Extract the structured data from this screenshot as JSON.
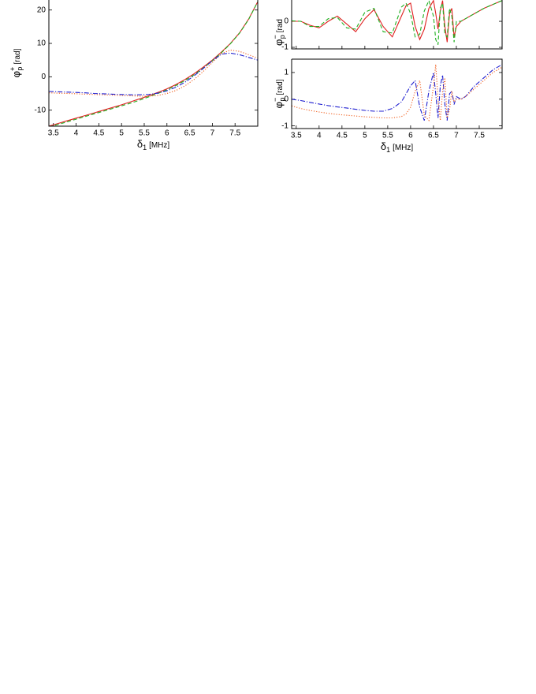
{
  "chart_data": [
    {
      "type": "line",
      "ylabel": {
        "symbol": "φ",
        "sub": "p",
        "sup": "+",
        "unit": "[rad]"
      },
      "xlabel": {
        "symbol": "δ",
        "sub": "1",
        "unit": "[MHz]"
      },
      "xlim": [
        3.4,
        8.0
      ],
      "ylim": [
        -14.8,
        23
      ],
      "xticks": [
        3.5,
        4,
        4.5,
        5,
        5.5,
        6,
        6.5,
        7,
        7.5
      ],
      "yticks": [
        -10,
        0,
        10,
        20
      ],
      "x": [
        3.4,
        3.6,
        3.8,
        4.0,
        4.2,
        4.4,
        4.6,
        4.8,
        5.0,
        5.2,
        5.4,
        5.6,
        5.8,
        6.0,
        6.2,
        6.4,
        6.6,
        6.8,
        7.0,
        7.2,
        7.4,
        7.6,
        7.8,
        8.0
      ],
      "series": [
        {
          "color": "#e02020",
          "dash": "solid",
          "values": [
            -14.8,
            -14,
            -13.2,
            -12.4,
            -11.6,
            -10.8,
            -10,
            -9.2,
            -8.4,
            -7.5,
            -6.6,
            -5.7,
            -4.7,
            -3.6,
            -2.3,
            -0.8,
            0.9,
            2.9,
            5.0,
            7.4,
            10.0,
            13.2,
            17.3,
            22.5
          ]
        },
        {
          "color": "#20b020",
          "dash": "dashed",
          "values": [
            -15.0,
            -14.3,
            -13.5,
            -12.7,
            -11.9,
            -11.1,
            -10.3,
            -9.5,
            -8.7,
            -7.9,
            -7.0,
            -6.0,
            -5.0,
            -3.9,
            -2.6,
            -1.1,
            0.6,
            2.6,
            4.8,
            7.2,
            9.9,
            13.1,
            17.2,
            22.5
          ]
        },
        {
          "color": "#f06020",
          "dash": "dotted",
          "values": [
            -4.8,
            -4.9,
            -5.0,
            -5.1,
            -5.2,
            -5.3,
            -5.4,
            -5.5,
            -5.6,
            -5.7,
            -5.8,
            -5.8,
            -5.6,
            -5.0,
            -4.1,
            -2.7,
            -0.8,
            1.6,
            4.3,
            6.9,
            8.0,
            7.6,
            6.6,
            5.6
          ]
        },
        {
          "color": "#2020d0",
          "dash": "dashdot",
          "values": [
            -4.4,
            -4.5,
            -4.6,
            -4.7,
            -4.8,
            -5.0,
            -5.1,
            -5.2,
            -5.3,
            -5.4,
            -5.4,
            -5.3,
            -4.9,
            -4.2,
            -3.1,
            -1.6,
            0.3,
            2.5,
            4.8,
            6.8,
            7.1,
            6.6,
            5.8,
            5.0
          ]
        }
      ]
    },
    {
      "type": "line",
      "ylabel": {
        "symbol": "φ",
        "sub": "p",
        "sup": "−",
        "unit": "[rad"
      },
      "xlim": [
        3.4,
        8.0
      ],
      "ylim": [
        -1.06,
        0.82
      ],
      "xticks": [
        3.5,
        4,
        4.5,
        5,
        5.5,
        6,
        6.5,
        7,
        7.5
      ],
      "xtick_labels": false,
      "yticks": [
        -1,
        0
      ],
      "x": [
        3.4,
        3.6,
        3.8,
        4.0,
        4.2,
        4.4,
        4.6,
        4.8,
        5.0,
        5.2,
        5.4,
        5.6,
        5.8,
        5.9,
        6.0,
        6.1,
        6.2,
        6.3,
        6.4,
        6.5,
        6.55,
        6.6,
        6.65,
        6.7,
        6.75,
        6.8,
        6.85,
        6.9,
        6.95,
        7.0,
        7.1,
        7.2,
        7.4,
        7.6,
        7.8,
        8.0
      ],
      "series": [
        {
          "color": "#e02020",
          "dash": "solid",
          "values": [
            0.0,
            0.0,
            -0.15,
            -0.25,
            0.0,
            0.2,
            -0.1,
            -0.4,
            0.1,
            0.45,
            -0.2,
            -0.6,
            0.2,
            0.6,
            0.7,
            -0.2,
            -0.7,
            -0.3,
            0.5,
            0.8,
            0.3,
            -0.3,
            0.4,
            0.8,
            -0.2,
            -0.8,
            0.3,
            0.5,
            -0.6,
            -0.2,
            0.0,
            0.1,
            0.3,
            0.5,
            0.65,
            0.8
          ]
        },
        {
          "color": "#20b020",
          "dash": "dashed",
          "values": [
            0.02,
            0.0,
            -0.2,
            -0.2,
            0.1,
            0.15,
            -0.25,
            -0.3,
            0.35,
            0.5,
            -0.4,
            -0.45,
            0.55,
            0.7,
            0.3,
            -0.6,
            -0.5,
            0.4,
            0.8,
            0.2,
            -0.7,
            -0.9,
            0.5,
            0.7,
            -0.5,
            -0.6,
            0.5,
            0.2,
            -0.8,
            0.0,
            0.0,
            0.1,
            0.3,
            0.5,
            0.65,
            0.8
          ]
        }
      ]
    },
    {
      "type": "line",
      "ylabel": {
        "symbol": "φ",
        "sub": "p",
        "sup": "−",
        "unit": "[rad]"
      },
      "xlabel": {
        "symbol": "δ",
        "sub": "1",
        "unit": "[MHz]"
      },
      "xlim": [
        3.4,
        8.0
      ],
      "ylim": [
        -1.1,
        1.5
      ],
      "xticks": [
        3.5,
        4,
        4.5,
        5,
        5.5,
        6,
        6.5,
        7,
        7.5
      ],
      "yticks": [
        -1,
        0,
        1
      ],
      "x": [
        3.4,
        3.6,
        3.8,
        4.0,
        4.2,
        4.4,
        4.6,
        4.8,
        5.0,
        5.2,
        5.4,
        5.6,
        5.8,
        5.9,
        6.0,
        6.1,
        6.2,
        6.3,
        6.4,
        6.5,
        6.55,
        6.6,
        6.65,
        6.7,
        6.75,
        6.8,
        6.85,
        6.9,
        6.95,
        7.0,
        7.1,
        7.2,
        7.4,
        7.6,
        7.8,
        8.0
      ],
      "series": [
        {
          "color": "#2020d0",
          "dash": "dashdot",
          "values": [
            0.0,
            -0.05,
            -0.12,
            -0.18,
            -0.24,
            -0.29,
            -0.33,
            -0.38,
            -0.42,
            -0.45,
            -0.45,
            -0.35,
            -0.1,
            0.2,
            0.5,
            0.7,
            -0.3,
            -0.8,
            0.3,
            1.0,
            0.2,
            -0.7,
            0.5,
            0.9,
            -0.2,
            -0.8,
            0.2,
            0.3,
            -0.2,
            0.1,
            0.0,
            0.1,
            0.5,
            0.8,
            1.1,
            1.3
          ]
        },
        {
          "color": "#f06020",
          "dash": "dotted",
          "values": [
            -0.25,
            -0.35,
            -0.42,
            -0.48,
            -0.53,
            -0.57,
            -0.6,
            -0.63,
            -0.66,
            -0.68,
            -0.7,
            -0.7,
            -0.65,
            -0.55,
            -0.3,
            0.3,
            0.7,
            -0.6,
            -0.8,
            0.5,
            1.3,
            0.0,
            -0.8,
            0.3,
            0.8,
            -0.7,
            -0.4,
            0.3,
            -0.1,
            0.0,
            0.0,
            0.1,
            0.4,
            0.7,
            1.0,
            1.2
          ]
        }
      ]
    }
  ]
}
